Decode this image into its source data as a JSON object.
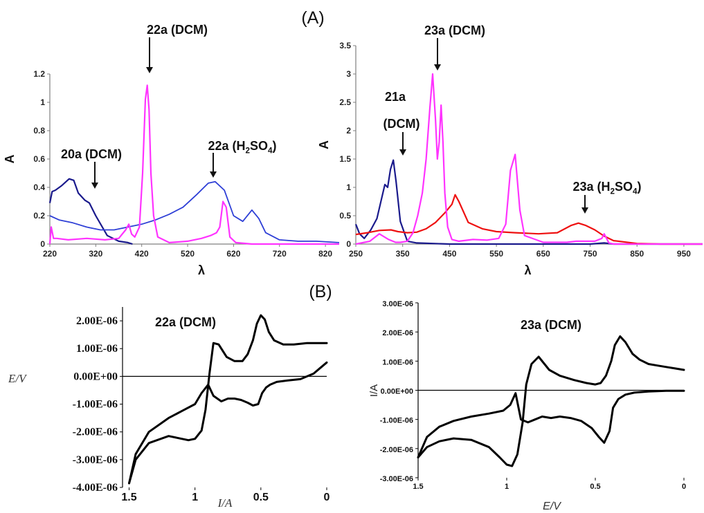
{
  "figure": {
    "label_a": "(A)",
    "label_b": "(B)"
  },
  "colors": {
    "navy": "#1a1a8c",
    "blue": "#2e3fd6",
    "magenta": "#ff33ff",
    "red": "#ee1111",
    "black": "#000000"
  },
  "chart_data": [
    {
      "type": "line",
      "panel": "A-left",
      "xlabel": "λ",
      "ylabel": "A",
      "xlim": [
        220,
        850
      ],
      "ylim": [
        0,
        1.2
      ],
      "xticks": [
        "220",
        "320",
        "420",
        "520",
        "620",
        "720",
        "820"
      ],
      "yticks": [
        "0",
        "0.2",
        "0.4",
        "0.6",
        "0.8",
        "1",
        "1.2"
      ],
      "annotations": [
        {
          "text": "22a (DCM)",
          "x": 430,
          "y": 1.15
        },
        {
          "text": "20a (DCM)",
          "x": 305,
          "y": 0.38
        },
        {
          "text": "22a (H₂SO₄)",
          "x": 565,
          "y": 0.5
        }
      ],
      "series": [
        {
          "color": "navy",
          "x": [
            220,
            225,
            232,
            245,
            262,
            272,
            282,
            296,
            306,
            320,
            345,
            370,
            390,
            400
          ],
          "y": [
            0.29,
            0.37,
            0.38,
            0.41,
            0.46,
            0.45,
            0.36,
            0.31,
            0.29,
            0.2,
            0.06,
            0.02,
            0.01,
            0.0
          ]
        },
        {
          "color": "blue",
          "x": [
            220,
            240,
            270,
            300,
            330,
            360,
            390,
            420,
            450,
            480,
            510,
            540,
            565,
            580,
            600,
            620,
            640,
            660,
            675,
            690,
            720,
            760,
            800,
            850
          ],
          "y": [
            0.2,
            0.17,
            0.15,
            0.12,
            0.1,
            0.1,
            0.12,
            0.14,
            0.17,
            0.21,
            0.26,
            0.35,
            0.43,
            0.44,
            0.38,
            0.2,
            0.16,
            0.24,
            0.18,
            0.08,
            0.03,
            0.02,
            0.02,
            0.01
          ]
        },
        {
          "color": "magenta",
          "x": [
            220,
            223,
            228,
            235,
            260,
            300,
            340,
            370,
            385,
            392,
            398,
            405,
            415,
            422,
            428,
            432,
            436,
            440,
            446,
            455,
            480,
            520,
            550,
            570,
            583,
            590,
            597,
            604,
            612,
            625,
            660,
            720,
            780,
            850
          ],
          "y": [
            0.0,
            0.12,
            0.04,
            0.04,
            0.03,
            0.04,
            0.03,
            0.04,
            0.1,
            0.14,
            0.07,
            0.05,
            0.12,
            0.5,
            1.02,
            1.12,
            0.95,
            0.5,
            0.2,
            0.05,
            0.01,
            0.02,
            0.04,
            0.06,
            0.08,
            0.12,
            0.3,
            0.26,
            0.05,
            0.01,
            0.0,
            0.0,
            0.0,
            0.0
          ]
        }
      ]
    },
    {
      "type": "line",
      "panel": "A-right",
      "xlabel": "λ",
      "ylabel": "A",
      "xlim": [
        250,
        990
      ],
      "ylim": [
        0,
        3.5
      ],
      "xticks": [
        "250",
        "350",
        "450",
        "550",
        "650",
        "750",
        "850",
        "950"
      ],
      "yticks": [
        "0",
        "0.5",
        "1",
        "1.5",
        "2",
        "2.5",
        "3",
        "3.5"
      ],
      "annotations": [
        {
          "text": "23a (DCM)",
          "x": 415,
          "y": 3.25
        },
        {
          "text": "21a",
          "x": 325,
          "y": 2.6
        },
        {
          "text": "(DCM)",
          "x": 325,
          "y": 2.1
        },
        {
          "text": "23a (H₂SO₄)",
          "x": 725,
          "y": 0.95
        }
      ],
      "series": [
        {
          "color": "navy",
          "x": [
            250,
            258,
            268,
            282,
            295,
            305,
            312,
            318,
            324,
            330,
            336,
            345,
            360,
            380,
            450,
            650,
            750,
            780,
            800,
            990
          ],
          "y": [
            0.35,
            0.18,
            0.1,
            0.25,
            0.45,
            0.8,
            1.05,
            1.0,
            1.32,
            1.48,
            1.1,
            0.4,
            0.05,
            0.02,
            0.0,
            0.0,
            0.0,
            0.02,
            0.0,
            0.0
          ]
        },
        {
          "color": "red",
          "x": [
            250,
            275,
            300,
            325,
            340,
            360,
            380,
            400,
            420,
            440,
            455,
            462,
            470,
            490,
            520,
            550,
            590,
            640,
            680,
            710,
            725,
            740,
            760,
            780,
            800,
            850,
            900,
            990
          ],
          "y": [
            0.17,
            0.2,
            0.24,
            0.25,
            0.22,
            0.2,
            0.21,
            0.27,
            0.38,
            0.55,
            0.7,
            0.87,
            0.75,
            0.38,
            0.27,
            0.22,
            0.2,
            0.18,
            0.2,
            0.33,
            0.37,
            0.33,
            0.25,
            0.14,
            0.06,
            0.01,
            0.0,
            0.0
          ]
        },
        {
          "color": "magenta",
          "x": [
            250,
            280,
            300,
            320,
            335,
            345,
            360,
            372,
            382,
            392,
            400,
            408,
            414,
            420,
            424,
            428,
            432,
            436,
            440,
            446,
            455,
            470,
            500,
            530,
            555,
            570,
            580,
            590,
            600,
            610,
            650,
            700,
            720,
            760,
            775,
            780,
            790,
            800,
            850,
            990
          ],
          "y": [
            0.0,
            0.05,
            0.18,
            0.08,
            0.03,
            0.03,
            0.05,
            0.2,
            0.5,
            0.9,
            1.5,
            2.4,
            3.0,
            2.2,
            1.5,
            1.8,
            2.45,
            1.8,
            0.9,
            0.3,
            0.08,
            0.05,
            0.08,
            0.07,
            0.1,
            0.35,
            1.3,
            1.58,
            0.6,
            0.15,
            0.03,
            0.03,
            0.05,
            0.05,
            0.1,
            0.18,
            0.02,
            0.0,
            0.0,
            0.0
          ]
        }
      ]
    },
    {
      "type": "line",
      "panel": "B-left",
      "title": "22a (DCM)",
      "xlabel": "I/A",
      "ylabel": "E/V",
      "xlim": [
        1.55,
        0
      ],
      "ylim": [
        -4e-06,
        2.5e-06
      ],
      "xticks": [
        "1.5",
        "1",
        "0.5",
        "0"
      ],
      "yticks": [
        "2.00E-06",
        "1.00E-06",
        "0.00E+00",
        "-1.00E-06",
        "-2.00E-06",
        "-3.00E-06",
        "-4.00E-06"
      ],
      "series": [
        {
          "color": "black",
          "x": [
            1.5,
            1.45,
            1.35,
            1.2,
            1.05,
            1.0,
            0.95,
            0.92,
            0.89,
            0.86,
            0.82,
            0.76,
            0.7,
            0.64,
            0.6,
            0.56,
            0.53,
            0.5,
            0.47,
            0.44,
            0.4,
            0.33,
            0.25,
            0.15,
            0.05,
            0.0
          ],
          "y": [
            -3.85e-06,
            -3e-06,
            -2.4e-06,
            -2.15e-06,
            -2.3e-06,
            -2.25e-06,
            -1.95e-06,
            -1.2e-06,
            1e-07,
            1.2e-06,
            1.15e-06,
            7e-07,
            5.5e-07,
            5.5e-07,
            8e-07,
            1.3e-06,
            1.9e-06,
            2.2e-06,
            2.05e-06,
            1.6e-06,
            1.3e-06,
            1.15e-06,
            1.15e-06,
            1.2e-06,
            1.2e-06,
            1.2e-06
          ]
        },
        {
          "color": "black",
          "x": [
            1.5,
            1.45,
            1.35,
            1.2,
            1.1,
            1.0,
            0.95,
            0.9,
            0.86,
            0.8,
            0.75,
            0.7,
            0.65,
            0.6,
            0.56,
            0.52,
            0.49,
            0.46,
            0.43,
            0.38,
            0.3,
            0.2,
            0.1,
            0.05,
            0.0
          ],
          "y": [
            -3.85e-06,
            -2.8e-06,
            -2e-06,
            -1.5e-06,
            -1.25e-06,
            -1e-06,
            -6e-07,
            -3e-07,
            -7e-07,
            -9e-07,
            -8e-07,
            -8e-07,
            -8.5e-07,
            -9.5e-07,
            -1.05e-06,
            -1e-06,
            -6e-07,
            -4e-07,
            -3e-07,
            -2e-07,
            -1.5e-07,
            -1e-07,
            1e-07,
            3e-07,
            5e-07
          ]
        }
      ]
    },
    {
      "type": "line",
      "panel": "B-right",
      "title": "23a (DCM)",
      "xlabel": "E/V",
      "ylabel": "I/A",
      "xlim": [
        1.5,
        0
      ],
      "ylim": [
        -3e-06,
        3e-06
      ],
      "xticks": [
        "1.5",
        "1",
        "0.5",
        "0"
      ],
      "yticks": [
        "3.00E-06",
        "2.00E-06",
        "1.00E-06",
        "0.00E+00",
        "-1.00E-06",
        "-2.00E-06",
        "-3.00E-06"
      ],
      "series": [
        {
          "color": "black",
          "x": [
            1.5,
            1.45,
            1.38,
            1.3,
            1.2,
            1.1,
            1.04,
            1.0,
            0.97,
            0.94,
            0.91,
            0.89,
            0.86,
            0.82,
            0.76,
            0.7,
            0.62,
            0.55,
            0.5,
            0.47,
            0.44,
            0.41,
            0.39,
            0.36,
            0.33,
            0.29,
            0.25,
            0.2,
            0.15,
            0.1,
            0.05,
            0.0
          ],
          "y": [
            -2.3e-06,
            -1.95e-06,
            -1.75e-06,
            -1.65e-06,
            -1.7e-06,
            -1.95e-06,
            -2.3e-06,
            -2.55e-06,
            -2.6e-06,
            -2.2e-06,
            -1.1e-06,
            2e-07,
            9e-07,
            1.15e-06,
            7e-07,
            5e-07,
            3.5e-07,
            2.5e-07,
            2e-07,
            2.5e-07,
            5e-07,
            1e-06,
            1.55e-06,
            1.85e-06,
            1.65e-06,
            1.25e-06,
            1.05e-06,
            9e-07,
            8.5e-07,
            8e-07,
            7.5e-07,
            7e-07
          ]
        },
        {
          "color": "black",
          "x": [
            1.5,
            1.45,
            1.38,
            1.3,
            1.2,
            1.1,
            1.02,
            0.98,
            0.95,
            0.92,
            0.88,
            0.84,
            0.8,
            0.75,
            0.7,
            0.64,
            0.58,
            0.52,
            0.48,
            0.45,
            0.42,
            0.4,
            0.37,
            0.33,
            0.28,
            0.2,
            0.1,
            0.0
          ],
          "y": [
            -2.3e-06,
            -1.6e-06,
            -1.25e-06,
            -1.05e-06,
            -9e-07,
            -8e-07,
            -7e-07,
            -5e-07,
            -1e-07,
            -1e-06,
            -1.1e-06,
            -1e-06,
            -9e-07,
            -9.5e-07,
            -9e-07,
            -9.5e-07,
            -1.05e-06,
            -1.3e-06,
            -1.6e-06,
            -1.8e-06,
            -1.4e-06,
            -6e-07,
            -3e-07,
            -1.5e-07,
            -8e-08,
            -4e-08,
            -2e-08,
            -2e-08
          ]
        }
      ]
    }
  ]
}
